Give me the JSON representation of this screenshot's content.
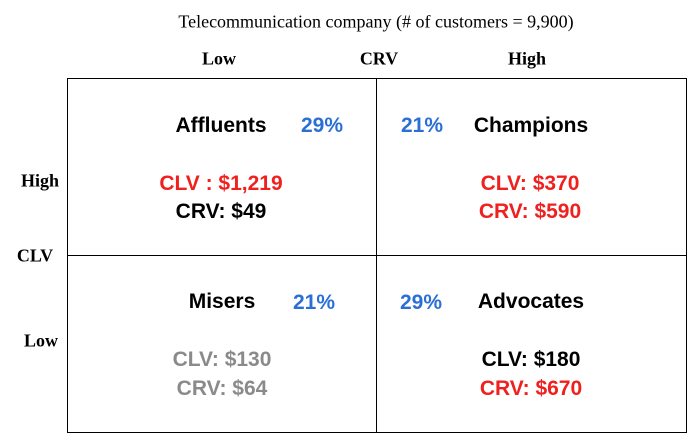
{
  "title": "Telecommunication company (# of customers = 9,900)",
  "x_axis": {
    "low": "Low",
    "label": "CRV",
    "high": "High"
  },
  "y_axis": {
    "high": "High",
    "label": "CLV",
    "low": "Low"
  },
  "quadrants": [
    {
      "name": "Affluents",
      "share": "29%",
      "clv": "CLV : $1,219",
      "crv": "CRV: $49"
    },
    {
      "name": "Champions",
      "share": "21%",
      "clv": "CLV: $370",
      "crv": "CRV: $590"
    },
    {
      "name": "Misers",
      "share": "21%",
      "clv": "CLV: $130",
      "crv": "CRV: $64"
    },
    {
      "name": "Advocates",
      "share": "29%",
      "clv": "CLV: $180",
      "crv": "CRV: $670"
    }
  ]
}
